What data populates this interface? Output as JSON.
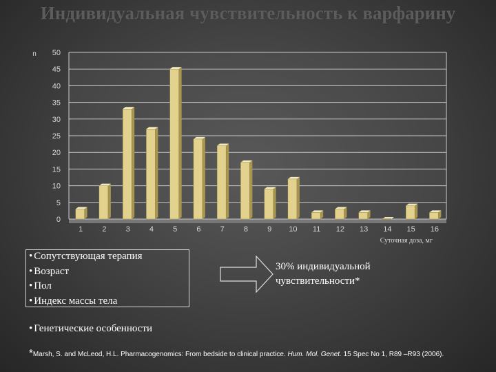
{
  "title": "Индивидуальная чувствительность к варфарину",
  "chart_data": {
    "type": "bar",
    "ylabel": "n",
    "xlabel": "Суточная доза, мг",
    "ylim": [
      0,
      50
    ],
    "yticks": [
      0,
      5,
      10,
      15,
      20,
      25,
      30,
      35,
      40,
      45,
      50
    ],
    "categories": [
      "1",
      "2",
      "3",
      "4",
      "5",
      "6",
      "7",
      "8",
      "9",
      "10",
      "11",
      "12",
      "13",
      "14",
      "15",
      "16"
    ],
    "values": [
      3,
      10,
      33,
      27,
      45,
      24,
      22,
      17,
      9,
      12,
      2,
      3,
      2,
      0,
      4,
      2
    ],
    "grid": true,
    "colors": {
      "front": "#e2d28e",
      "side": "#a89650",
      "top": "#f2eac0",
      "grid": "#c9c9c9",
      "axis": "#d0d0d0",
      "tick_label": "#d8d8d8",
      "plot_bg": "#555555"
    }
  },
  "factors": {
    "items": [
      "Сопутствующая терапия",
      "Возраст",
      "Пол",
      "Индекс массы тела"
    ],
    "genetic": "Генетические особенности"
  },
  "result_text": "30% индивидуальной чувствительности*",
  "reference": {
    "star": "*",
    "authors": "Marsh, S. and McLeod, H.L. Pharmacogenomics: From bedside to clinical practice.",
    "journal": "Hum. Mol. Genet.",
    "details": "15 Spec No 1, R89 –R93 (2006)."
  }
}
